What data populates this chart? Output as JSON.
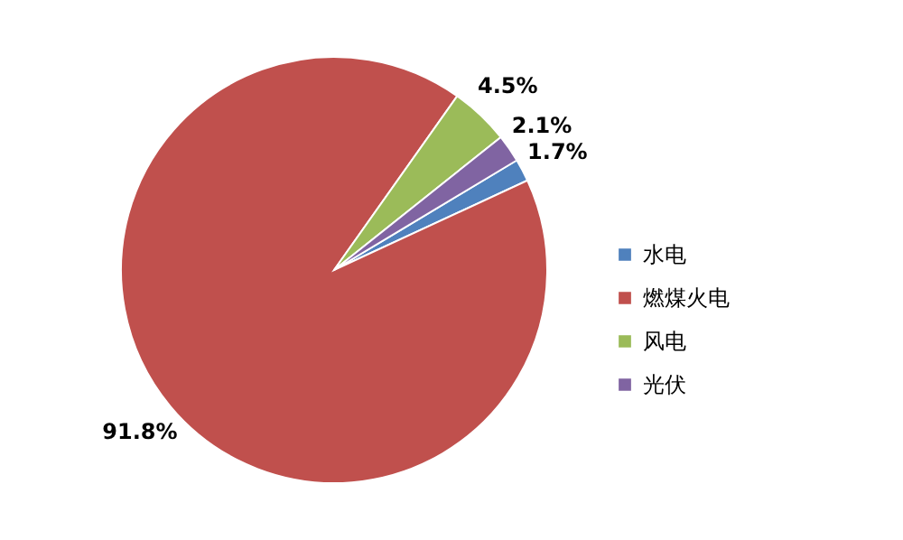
{
  "chart_data": {
    "type": "pie",
    "categories": [
      "水电",
      "燃煤火电",
      "风电",
      "光伏"
    ],
    "values": [
      1.7,
      91.8,
      4.5,
      2.1
    ],
    "colors": [
      "#4f81bd",
      "#c0504d",
      "#9bbb59",
      "#8064a2"
    ],
    "value_labels": [
      "1.7%",
      "91.8%",
      "4.5%",
      "2.1%"
    ],
    "legend": "right"
  }
}
